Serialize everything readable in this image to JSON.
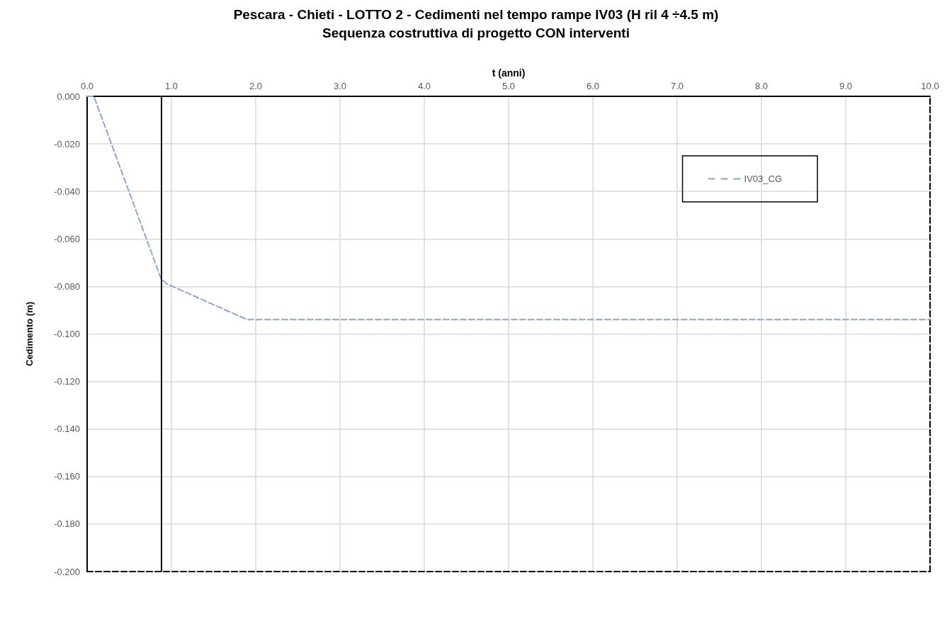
{
  "chart_data": {
    "type": "line",
    "title": "Pescara - Chieti - LOTTO 2 - Cedimenti nel tempo rampe IV03 (H ril 4 ÷4.5 m)",
    "subtitle": "Sequenza costruttiva di progetto CON interventi",
    "xlabel": "t (anni)",
    "ylabel": "Cedimento (m)",
    "x": [
      0,
      0.08,
      0.88,
      0.95,
      1.9,
      10
    ],
    "series": [
      {
        "name": "IV03_CG",
        "color": "#8ea5d9",
        "values": [
          0,
          0,
          -0.077,
          -0.079,
          -0.094,
          -0.094
        ]
      }
    ],
    "xlim": [
      0,
      10
    ],
    "xticks": [
      {
        "value": 0,
        "label": "0.0"
      },
      {
        "value": 1,
        "label": "1.0"
      },
      {
        "value": 2,
        "label": "2.0"
      },
      {
        "value": 3,
        "label": "3.0"
      },
      {
        "value": 4,
        "label": "4.0"
      },
      {
        "value": 5,
        "label": "5.0"
      },
      {
        "value": 6,
        "label": "6.0"
      },
      {
        "value": 7,
        "label": "7.0"
      },
      {
        "value": 8,
        "label": "8.0"
      },
      {
        "value": 9,
        "label": "9.0"
      },
      {
        "value": 10,
        "label": "10.0"
      }
    ],
    "ylim": [
      -0.2,
      0
    ],
    "yticks": [
      {
        "value": -0.2,
        "label": "-0.200"
      },
      {
        "value": -0.18,
        "label": "-0.180"
      },
      {
        "value": -0.16,
        "label": "-0.160"
      },
      {
        "value": -0.14,
        "label": "-0.140"
      },
      {
        "value": -0.12,
        "label": "-0.120"
      },
      {
        "value": -0.1,
        "label": "-0.100"
      },
      {
        "value": -0.08,
        "label": "-0.080"
      },
      {
        "value": -0.06,
        "label": "-0.060"
      },
      {
        "value": -0.04,
        "label": "-0.040"
      },
      {
        "value": -0.02,
        "label": "-0.020"
      },
      {
        "value": 0,
        "label": "0.000"
      }
    ],
    "ref_lines": [
      {
        "axis": "x",
        "value": 0.88,
        "color": "#000000",
        "line_style": "solid"
      }
    ],
    "grid": true,
    "legend": "top right",
    "marker": "none",
    "line_style": "dashed"
  }
}
